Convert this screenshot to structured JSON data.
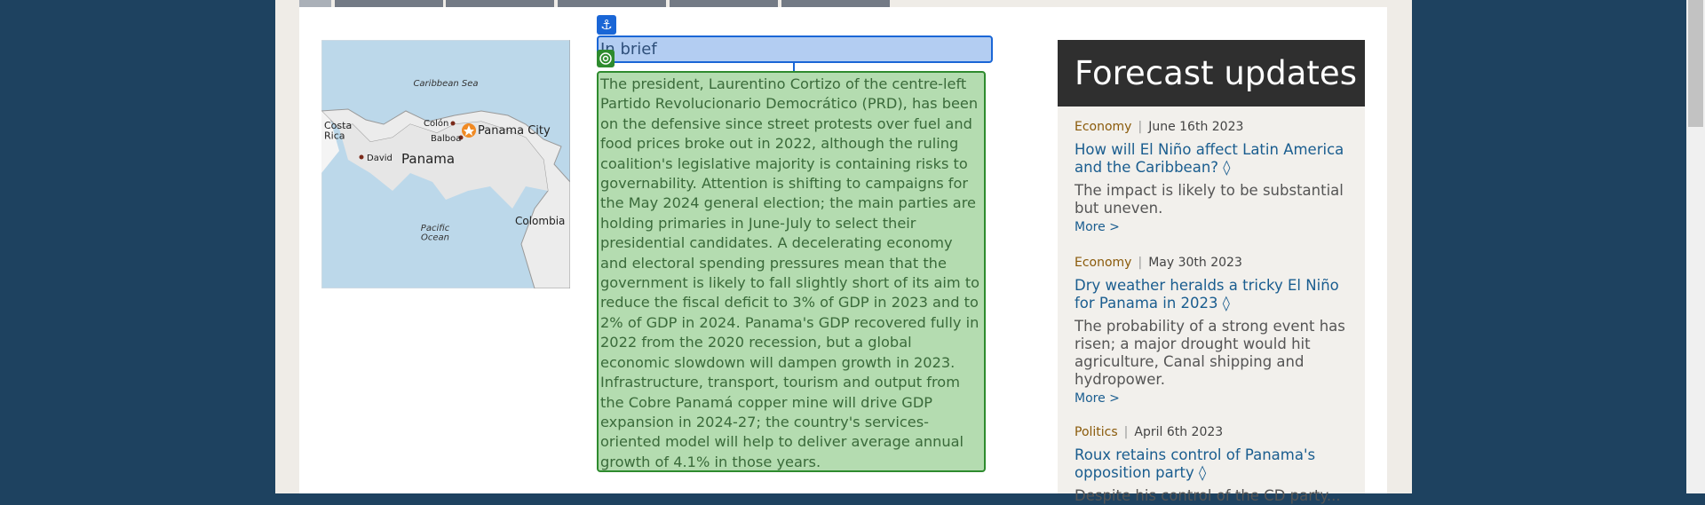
{
  "map": {
    "labels": {
      "sea": "Caribbean Sea",
      "costa_rica": "Costa\nRica",
      "colon": "Colón",
      "balboa": "Balboa",
      "capital": "Panama City",
      "david": "David",
      "country": "Panama",
      "ocean": "Pacific\nOcean",
      "colombia": "Colombia"
    }
  },
  "in_brief": {
    "heading": "In brief",
    "text": "The president, Laurentino Cortizo of the centre-left Partido Revolucionario Democrático (PRD), has been on the defensive since street protests over fuel and food prices broke out in 2022, although the ruling coalition's legislative majority is containing risks to governability. Attention is shifting to campaigns for the May 2024 general election; the main parties are holding primaries in June-July to select their presidential candidates. A decelerating economy and electoral spending pressures mean that the government is likely to fall slightly short of its aim to reduce the fiscal deficit to 3% of GDP in 2023 and to 2% of GDP in 2024. Panama's GDP recovered fully in 2022 from the 2020 recession, but a global economic slowdown will dampen growth in 2023. Infrastructure, transport, tourism and output from the Cobre Panamá copper mine will drive GDP expansion in 2024-27; the country's services-oriented model will help to deliver average annual growth of 4.1% in those years."
  },
  "forecast": {
    "title": "Forecast updates",
    "items": [
      {
        "category": "Economy",
        "date": "June 16th 2023",
        "title": "How will El Niño affect Latin America and the Caribbean? ◊",
        "summary": "The impact is likely to be substantial but uneven.",
        "more": "More >"
      },
      {
        "category": "Economy",
        "date": "May 30th 2023",
        "title": "Dry weather heralds a tricky El Niño for Panama in 2023 ◊",
        "summary": "The probability of a strong event has risen; a major drought would hit agriculture, Canal shipping and hydropower.",
        "more": "More >"
      },
      {
        "category": "Politics",
        "date": "April 6th 2023",
        "title": "Roux retains control of Panama's opposition party ◊",
        "summary": "Despite his control of the CD party..."
      }
    ]
  }
}
